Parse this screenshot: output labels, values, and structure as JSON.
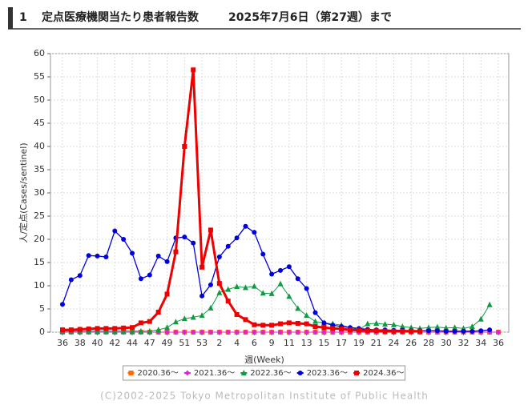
{
  "header": {
    "number": "1",
    "title": "定点医療機関当たり患者報告数",
    "date": "2025年7月6日（第27週）まで"
  },
  "chart_data": {
    "type": "line",
    "ylabel": "人/定点(Cases/sentinel)",
    "xlabel": "週(Week)",
    "ylim": [
      0,
      60
    ],
    "yticks": [
      0,
      5,
      10,
      15,
      20,
      25,
      30,
      35,
      40,
      45,
      50,
      55,
      60
    ],
    "grid": true,
    "categories": [
      "36",
      null,
      "38",
      null,
      "40",
      null,
      "42",
      null,
      "44",
      null,
      "47",
      null,
      "49",
      null,
      "51",
      null,
      "53",
      null,
      "2",
      null,
      "4",
      null,
      "6",
      null,
      "9",
      null,
      "11",
      null,
      "13",
      null,
      "15",
      null,
      "17",
      null,
      "19",
      null,
      "21",
      null,
      "24",
      null,
      "26",
      null,
      "28",
      null,
      "30",
      null,
      "32",
      null,
      "34",
      null,
      "36"
    ],
    "legend": "bottom",
    "series": [
      {
        "name": "2020.36～",
        "color": "#ff6a00",
        "marker": "square",
        "width": 1,
        "values": [
          0,
          0,
          0,
          0,
          0,
          0,
          0,
          0,
          0,
          0,
          0,
          0,
          0,
          0,
          0,
          0,
          0,
          0,
          0,
          0,
          0,
          0,
          0,
          0,
          0,
          0,
          0,
          0,
          0,
          0,
          0,
          0,
          0,
          0,
          0,
          0,
          0,
          0,
          0,
          0,
          0,
          0,
          0,
          0,
          0,
          0,
          0,
          0,
          0,
          0,
          0
        ]
      },
      {
        "name": "2021.36～",
        "color": "#e020e0",
        "marker": "diamond",
        "width": 1,
        "values": [
          0,
          0,
          0,
          0,
          0,
          0,
          0,
          0,
          0,
          0,
          0,
          0,
          0,
          0,
          0,
          0,
          0,
          0,
          0,
          0,
          0,
          0,
          0,
          0,
          0,
          0,
          0,
          0,
          0,
          0,
          0,
          0,
          0,
          0,
          0,
          0,
          0,
          0,
          0,
          0,
          0,
          0,
          0,
          0,
          0,
          0,
          0,
          0,
          0,
          0,
          0
        ]
      },
      {
        "name": "2022.36～",
        "color": "#119944",
        "marker": "triangle",
        "width": 1,
        "values": [
          0.2,
          0.2,
          0.2,
          0.2,
          0.2,
          0.2,
          0.2,
          0.2,
          0.2,
          0.2,
          0.2,
          0.5,
          1.0,
          2.2,
          2.9,
          3.2,
          3.6,
          5.2,
          8.5,
          9.2,
          9.8,
          9.6,
          9.9,
          8.4,
          8.3,
          10.4,
          7.7,
          5.1,
          3.6,
          2.3,
          2.0,
          1.8,
          1.5,
          1.0,
          0.5,
          1.8,
          1.9,
          1.7,
          1.6,
          1.2,
          1.0,
          0.8,
          1.0,
          1.1,
          0.9,
          1.0,
          0.8,
          1.2,
          2.8,
          5.9,
          null
        ]
      },
      {
        "name": "2023.36～",
        "color": "#0000dd",
        "marker": "circle",
        "width": 1.3,
        "values": [
          6,
          11.3,
          12.2,
          16.5,
          16.4,
          16.2,
          21.8,
          20,
          17,
          11.5,
          12.3,
          16.4,
          15.2,
          20.3,
          20.5,
          19.2,
          7.8,
          10.2,
          16.2,
          18.5,
          20.3,
          22.8,
          21.5,
          16.8,
          12.5,
          13.3,
          14.1,
          11.5,
          9.4,
          4.2,
          2.0,
          1.5,
          1.2,
          1.0,
          0.8,
          0.6,
          0.5,
          0.5,
          0.4,
          0.4,
          0.3,
          0.3,
          0.3,
          0.3,
          0.2,
          0.2,
          0.2,
          0.2,
          0.3,
          0.5,
          null
        ]
      },
      {
        "name": "2024.36～",
        "color": "#ee0000",
        "marker": "square",
        "width": 3,
        "values": [
          0.5,
          0.5,
          0.6,
          0.7,
          0.8,
          0.8,
          0.8,
          0.9,
          1.0,
          2.0,
          2.3,
          4.3,
          8.2,
          17.3,
          40,
          56.5,
          14,
          22,
          10.5,
          6.7,
          3.8,
          2.7,
          1.6,
          1.5,
          1.5,
          1.8,
          2.0,
          1.9,
          1.8,
          1.2,
          1.0,
          0.8,
          0.7,
          0.5,
          0.4,
          0.3,
          0.3,
          0.2,
          0.2,
          0.2,
          0.2,
          0.2,
          null,
          null,
          null,
          null,
          null,
          null,
          null,
          null,
          null
        ]
      }
    ],
    "footer": "(C)2002-2025 Tokyo Metropolitan Institute of Public Health"
  }
}
